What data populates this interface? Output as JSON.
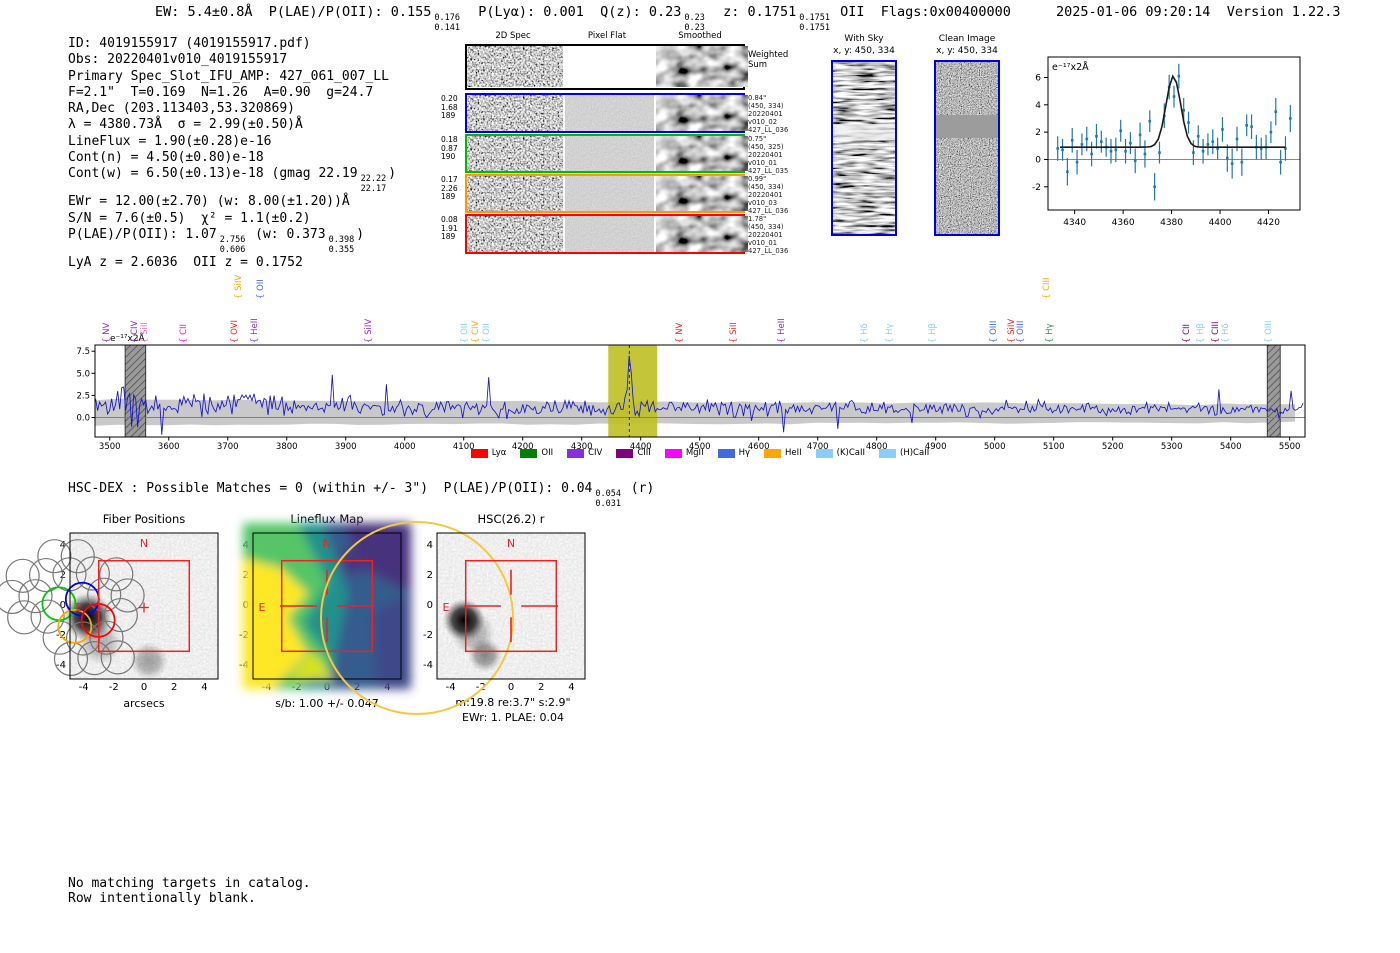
{
  "header": {
    "left_parts": [
      {
        "t": "EW: 5.4±0.8Å  "
      },
      {
        "t": "P(LAE)/P(OII): 0.155"
      },
      {
        "sup": "0.176",
        "sub": "0.141"
      },
      {
        "t": "  P(Lyα): 0.001  Q(z): 0.23"
      },
      {
        "sup": "0.23",
        "sub": "0.23"
      },
      {
        "t": "  z: 0.1751"
      },
      {
        "sup": "0.1751",
        "sub": "0.1751"
      },
      {
        "t": " OII  Flags:0x00400000"
      }
    ],
    "timestamp": "2025-01-06 09:20:14",
    "version": "Version 1.22.3"
  },
  "info_block": {
    "lines": [
      [
        {
          "t": "ID: 4019155917 (4019155917.pdf)"
        }
      ],
      [
        {
          "t": "Obs: 20220401v010_4019155917"
        }
      ],
      [
        {
          "t": "Primary Spec_Slot_IFU_AMP: 427_061_007_LL"
        }
      ],
      [
        {
          "t": "F=2.1\"  T=0.169  N=1.26  A=0.90  g=24.7"
        }
      ],
      [
        {
          "t": "RA,Dec (203.113403,53.320869)"
        }
      ],
      [
        {
          "t": "λ = 4380.73Å  σ = 2.99(±0.50)Å"
        }
      ],
      [
        {
          "t": "LineFlux = 1.90(±0.28)e-16"
        }
      ],
      [
        {
          "t": "Cont(n) = 4.50(±0.80)e-18"
        }
      ],
      [
        {
          "t": "Cont(w) = 6.50(±0.13)e-18 (gmag 22.19"
        },
        {
          "sup": "22.22",
          "sub": "22.17"
        },
        {
          "t": ")"
        }
      ],
      [
        {
          "t": "EWr = 12.00(±2.70) (w: 8.00(±1.20))Å"
        }
      ],
      [
        {
          "t": "S/N = 7.6(±0.5)  χ² = 1.1(±0.2)"
        }
      ],
      [
        {
          "t": "P(LAE)/P(OII): 1.07"
        },
        {
          "sup": "2.756",
          "sub": "0.606"
        },
        {
          "t": " (w: 0.373"
        },
        {
          "sup": "0.398",
          "sub": "0.355"
        },
        {
          "t": ")"
        }
      ],
      [
        {
          "t": "LyA z = 2.6036  OII z = 0.1752"
        }
      ]
    ]
  },
  "cutouts_2d": {
    "col_headers": [
      "2D Spec",
      "Pixel Flat",
      "Smoothed"
    ],
    "rows": [
      {
        "border": "#000000",
        "left": [],
        "right": [
          "Weighted",
          "Sum"
        ]
      },
      {
        "border": "#0000ee",
        "left": [
          "0.20",
          "1.68",
          "189"
        ],
        "right": [
          "0.84\"",
          "(450, 334)",
          "20220401",
          "v010_02",
          "427_LL_036"
        ]
      },
      {
        "border": "#00bb00",
        "left": [
          "0.18",
          "0.87",
          "190"
        ],
        "right": [
          "0.75\"",
          "(450, 325)",
          "20220401",
          "v010_01",
          "427_LL_035"
        ]
      },
      {
        "border": "#ff9900",
        "left": [
          "0.17",
          "2.26",
          "189"
        ],
        "right": [
          "0.99\"",
          "(450, 334)",
          "20220401",
          "v010_03",
          "427_LL_036"
        ]
      },
      {
        "border": "#ff0000",
        "left": [
          "0.08",
          "1.91",
          "189"
        ],
        "right": [
          "1.78\"",
          "(450, 334)",
          "20220401",
          "v010_01",
          "427_LL_036"
        ]
      }
    ]
  },
  "sky_panels": {
    "with_sky": {
      "title": "With Sky",
      "subtitle": "x, y: 450, 334"
    },
    "clean": {
      "title": "Clean Image",
      "subtitle": "x, y: 450, 334"
    }
  },
  "chart_data": [
    {
      "type": "errorbar",
      "name": "emission-line-fit-inset",
      "corner_label": "e⁻¹⁷x2Å",
      "xlim": [
        4329,
        4433
      ],
      "ylim": [
        -3.7,
        7.5
      ],
      "xticks": [
        4340,
        4360,
        4380,
        4400,
        4420
      ],
      "yticks": [
        -2,
        0,
        2,
        4,
        6
      ],
      "fit": {
        "center": 4380.73,
        "sigma": 2.99,
        "amplitude": 5.2,
        "continuum": 0.9
      },
      "points": {
        "x_start": 4333,
        "x_step": 2,
        "y": [
          0.8,
          0.7,
          -0.9,
          1.4,
          -0.2,
          1.1,
          1.5,
          0.4,
          1.7,
          1.3,
          0.9,
          0.6,
          0.7,
          2.1,
          0.6,
          1.2,
          -0.1,
          1.8,
          0.4,
          2.8,
          -2.0,
          0.5,
          3.2,
          5.3,
          4.6,
          6.1,
          3.6,
          2.7,
          0.5,
          1.7,
          0.6,
          1.1,
          1.3,
          0.8,
          2.2,
          0.1,
          -0.3,
          1.5,
          -0.2,
          2.5,
          2.4,
          0.9,
          0.8,
          0.9,
          2.0,
          3.5,
          -0.2,
          0.8,
          3.0
        ],
        "yerr": [
          0.9,
          0.8,
          1.0,
          0.9,
          0.9,
          0.8,
          0.9,
          0.9,
          0.9,
          0.8,
          0.7,
          0.9,
          0.9,
          0.8,
          0.9,
          0.8,
          0.9,
          0.9,
          1.0,
          0.8,
          1.0,
          0.8,
          0.9,
          0.9,
          0.8,
          0.9,
          0.9,
          0.8,
          0.9,
          0.8,
          0.9,
          0.8,
          0.9,
          0.8,
          0.9,
          1.0,
          1.1,
          0.9,
          1.0,
          0.8,
          0.9,
          0.9,
          0.8,
          0.9,
          0.8,
          1.0,
          0.9,
          0.9,
          1.0
        ]
      },
      "marker_color": "#1f77b4",
      "fit_color": "#1a1a1a"
    },
    {
      "type": "line",
      "name": "full-spectrum",
      "ylabel": "e⁻¹⁷x2Å",
      "xlim": [
        3475,
        5526
      ],
      "ylim": [
        -2.2,
        8.2
      ],
      "xticks": [
        3500,
        3600,
        3700,
        3800,
        3900,
        4000,
        4100,
        4200,
        4300,
        4400,
        4500,
        4600,
        4700,
        4800,
        4900,
        5000,
        5100,
        5200,
        5300,
        5400,
        5500
      ],
      "yticks": [
        0.0,
        2.5,
        5.0,
        7.5
      ],
      "line_color": "#1414cc",
      "detection_wavelength": 4380.73,
      "highlight_region": [
        4345,
        4428
      ],
      "masked_regions": [
        [
          3526,
          3561
        ],
        [
          5462,
          5484
        ]
      ],
      "error_band": {
        "top_left": 2.05,
        "top_right": 1.45,
        "bottom_left": -0.85,
        "bottom_right": -0.55
      },
      "continuum_sampled": {
        "x_start": 3475,
        "x_step": 50,
        "y": [
          1.5,
          2.3,
          1.2,
          1.5,
          1.3,
          1.9,
          1.5,
          1.2,
          1.4,
          1.1,
          0.9,
          1.0,
          1.2,
          1.0,
          0.6,
          1.0,
          1.1,
          0.9,
          1.0,
          1.2,
          1.3,
          1.0,
          1.2,
          1.1,
          1.0,
          1.3,
          1.0,
          1.1,
          0.9,
          1.0,
          0.8,
          1.1,
          1.2,
          0.9,
          1.0,
          0.9,
          1.0,
          1.1,
          0.8,
          1.0,
          0.9,
          1.0
        ]
      },
      "noise_level": {
        "blue_end": 1.3,
        "mid": 0.75,
        "red_end": 0.5
      },
      "peak": {
        "center": 4380.73,
        "sigma": 3.0,
        "amplitude": 5.2
      },
      "legend": [
        {
          "label": "Lyα",
          "color": "#ff0000"
        },
        {
          "label": "OII",
          "color": "#008000"
        },
        {
          "label": "CIV",
          "color": "#8a2be2"
        },
        {
          "label": "CIII",
          "color": "#800080"
        },
        {
          "label": "MgII",
          "color": "#ff00ff"
        },
        {
          "label": "Hγ",
          "color": "#4169e1"
        },
        {
          "label": "HeII",
          "color": "#ffa500"
        },
        {
          "label": "(K)CaII",
          "color": "#87cefa"
        },
        {
          "label": "(H)CaII",
          "color": "#87cefa"
        }
      ],
      "line_labels": [
        {
          "wavelength": 3509,
          "text": "NV",
          "color": "#8a2be2"
        },
        {
          "wavelength": 3556,
          "text": "CIV",
          "color": "#8a2be2"
        },
        {
          "wavelength": 3573,
          "text": "SiII",
          "color": "#ff69b4"
        },
        {
          "wavelength": 3639,
          "text": "CII",
          "color": "#ff00ff"
        },
        {
          "wavelength": 3726,
          "text": "OVI",
          "color": "#ff2020"
        },
        {
          "wavelength": 3733,
          "text": "SiIV",
          "color": "#ffa500",
          "elevated": true
        },
        {
          "wavelength": 3760,
          "text": "HeII",
          "color": "#8a2be2"
        },
        {
          "wavelength": 3770,
          "text": "OII",
          "color": "#4169e1",
          "elevated": true
        },
        {
          "wavelength": 3953,
          "text": "SiIV",
          "color": "#8a2be2"
        },
        {
          "wavelength": 4116,
          "text": "OII",
          "color": "#87cefa"
        },
        {
          "wavelength": 4134,
          "text": "CIV",
          "color": "#ffa500"
        },
        {
          "wavelength": 4153,
          "text": "OII",
          "color": "#87cefa"
        },
        {
          "wavelength": 4480,
          "text": "NV",
          "color": "#ff2020"
        },
        {
          "wavelength": 4572,
          "text": "SiII",
          "color": "#ff2020"
        },
        {
          "wavelength": 4653,
          "text": "HeII",
          "color": "#8a2be2"
        },
        {
          "wavelength": 4794,
          "text": "Hδ",
          "color": "#87cefa"
        },
        {
          "wavelength": 4836,
          "text": "Hγ",
          "color": "#87cefa"
        },
        {
          "wavelength": 4909,
          "text": "Hβ",
          "color": "#87cefa"
        },
        {
          "wavelength": 5012,
          "text": "OIII",
          "color": "#4169e1"
        },
        {
          "wavelength": 5043,
          "text": "SiIV",
          "color": "#ff2020"
        },
        {
          "wavelength": 5058,
          "text": "OIII",
          "color": "#4169e1"
        },
        {
          "wavelength": 5102,
          "text": "CIII",
          "color": "#ffa500",
          "elevated": true
        },
        {
          "wavelength": 5107,
          "text": "Hγ",
          "color": "#2e8b57"
        },
        {
          "wavelength": 5339,
          "text": "CII",
          "color": "#800080"
        },
        {
          "wavelength": 5363,
          "text": "Hβ",
          "color": "#87cefa"
        },
        {
          "wavelength": 5389,
          "text": "CIII",
          "color": "#800080"
        },
        {
          "wavelength": 5406,
          "text": "Hδ",
          "color": "#87cefa"
        },
        {
          "wavelength": 5478,
          "text": "OIII",
          "color": "#87cefa"
        }
      ]
    }
  ],
  "hsc_line_parts": [
    {
      "t": "HSC-DEX : Possible Matches = 0 (within +/- 3\")  P(LAE)/P(OII): 0.04"
    },
    {
      "sup": "0.054",
      "sub": "0.031"
    },
    {
      "t": " (r)"
    }
  ],
  "panels": {
    "axes": {
      "xticks": [
        -4,
        -2,
        0,
        2,
        4
      ],
      "yticks": [
        4,
        2,
        0,
        -2,
        -4
      ]
    },
    "fiber": {
      "title": "Fiber Positions",
      "xlabel": "arcsecs",
      "compass_n": "N",
      "compass_e": "E",
      "fiber_colors": [
        "#00c800",
        "#0000ff",
        "#ffa500",
        "#ff0000"
      ]
    },
    "lineflux": {
      "title": "Lineflux Map",
      "xlabel": "s/b: 1.00 +/- 0.047",
      "compass_n": "N",
      "compass_e": "E"
    },
    "hsc": {
      "title": "HSC(26.2) r",
      "xlabel": "m:19.8 re:3.7\" s:2.9\"",
      "xlabel2": "EWr: 1. PLAE: 0.04",
      "compass_n": "N",
      "compass_e": "E"
    }
  },
  "footer": {
    "lines": [
      "No matching targets in catalog.",
      "Row intentionally blank."
    ]
  }
}
